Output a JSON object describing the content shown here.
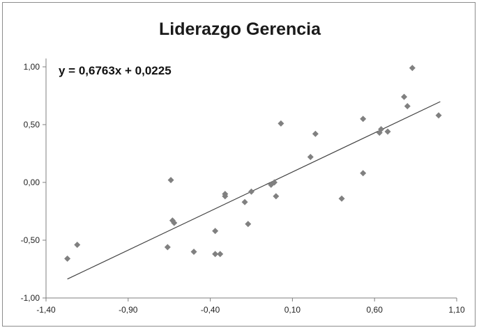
{
  "chart_data": {
    "type": "scatter",
    "title": "Liderazgo Gerencia",
    "equation_label": "y = 0,6763x + 0,0225",
    "trendline": {
      "slope": 0.6763,
      "intercept": 0.0225,
      "x_range": [
        -1.27,
        1.0
      ]
    },
    "xlim": [
      -1.4,
      1.1
    ],
    "ylim": [
      -1.0,
      1.0
    ],
    "x_ticks": [
      -1.4,
      -0.9,
      -0.4,
      0.1,
      0.6,
      1.1
    ],
    "x_tick_labels": [
      "-1,40",
      "-0,90",
      "-0,40",
      "0,10",
      "0,60",
      "1,10"
    ],
    "y_ticks": [
      -1.0,
      -0.5,
      0.0,
      0.5,
      1.0
    ],
    "y_tick_labels": [
      "-1,00",
      "-0,50",
      "0,00",
      "0,50",
      "1,00"
    ],
    "marker_color": "#808080",
    "line_color": "#404040",
    "points": [
      {
        "x": -1.27,
        "y": -0.66
      },
      {
        "x": -1.21,
        "y": -0.54
      },
      {
        "x": -0.66,
        "y": -0.56
      },
      {
        "x": -0.64,
        "y": 0.02
      },
      {
        "x": -0.63,
        "y": -0.33
      },
      {
        "x": -0.62,
        "y": -0.35
      },
      {
        "x": -0.5,
        "y": -0.6
      },
      {
        "x": -0.37,
        "y": -0.42
      },
      {
        "x": -0.37,
        "y": -0.62
      },
      {
        "x": -0.34,
        "y": -0.62
      },
      {
        "x": -0.31,
        "y": -0.1
      },
      {
        "x": -0.31,
        "y": -0.12
      },
      {
        "x": -0.19,
        "y": -0.17
      },
      {
        "x": -0.17,
        "y": -0.36
      },
      {
        "x": -0.15,
        "y": -0.08
      },
      {
        "x": -0.03,
        "y": -0.02
      },
      {
        "x": -0.01,
        "y": 0.0
      },
      {
        "x": 0.0,
        "y": -0.12
      },
      {
        "x": 0.03,
        "y": 0.51
      },
      {
        "x": 0.21,
        "y": 0.22
      },
      {
        "x": 0.24,
        "y": 0.42
      },
      {
        "x": 0.4,
        "y": -0.14
      },
      {
        "x": 0.53,
        "y": 0.55
      },
      {
        "x": 0.53,
        "y": 0.08
      },
      {
        "x": 0.63,
        "y": 0.43
      },
      {
        "x": 0.64,
        "y": 0.46
      },
      {
        "x": 0.68,
        "y": 0.44
      },
      {
        "x": 0.78,
        "y": 0.74
      },
      {
        "x": 0.8,
        "y": 0.66
      },
      {
        "x": 0.83,
        "y": 0.99
      },
      {
        "x": 0.99,
        "y": 0.58
      }
    ]
  }
}
